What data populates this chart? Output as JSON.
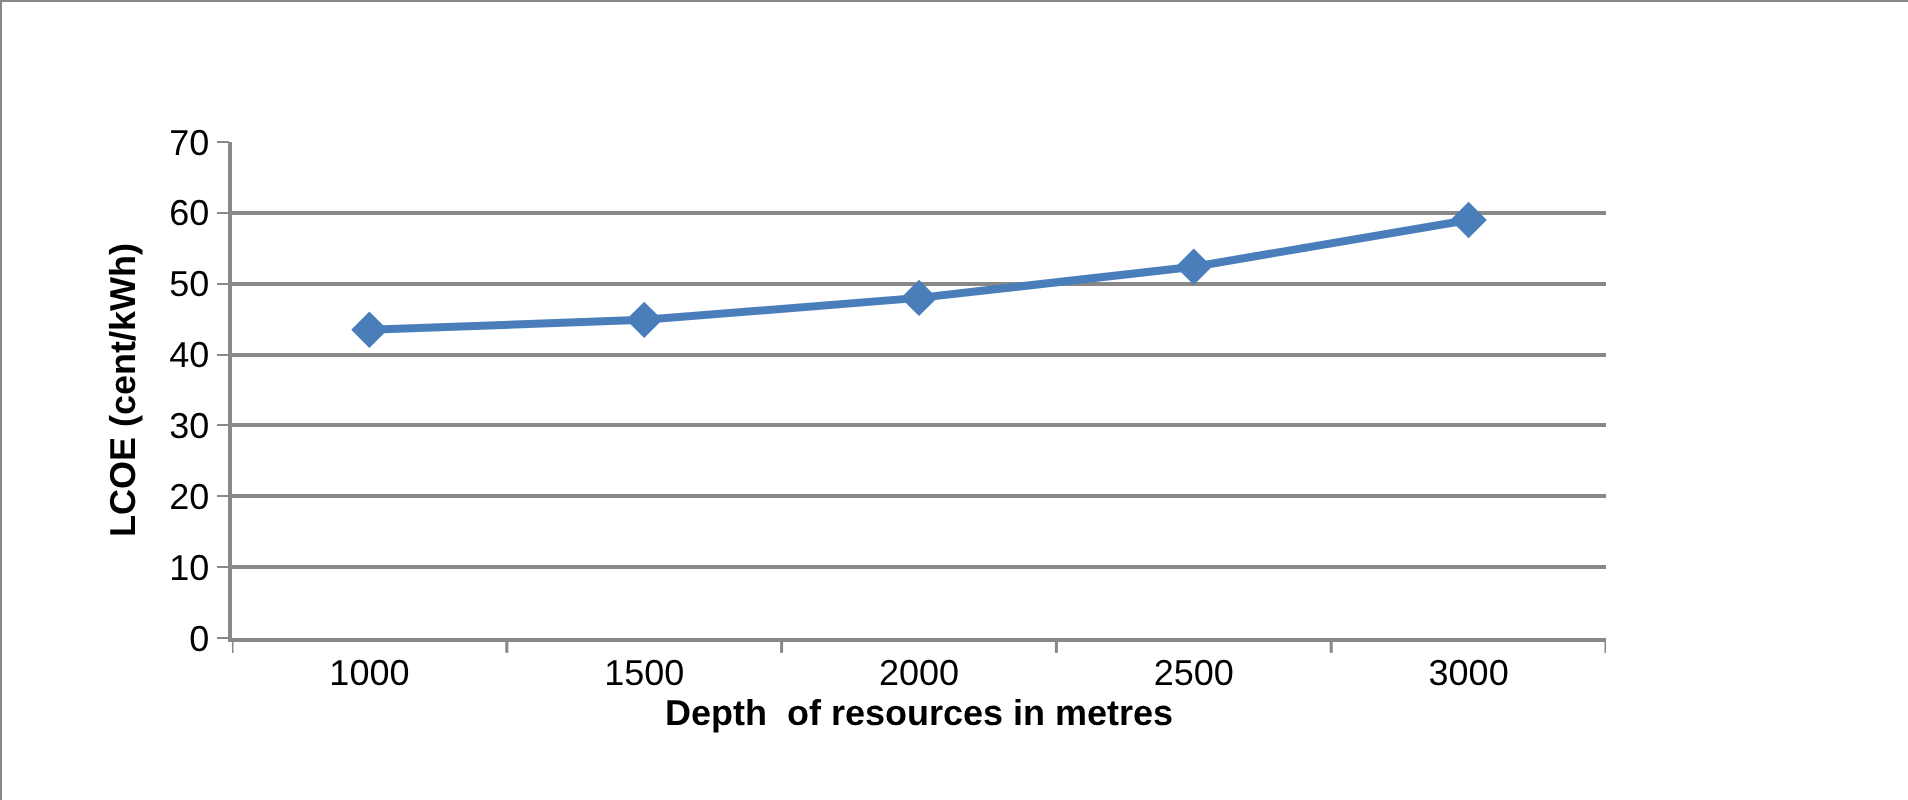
{
  "chart_data": {
    "type": "line",
    "xlabel": "Depth  of resources in metres",
    "ylabel": "LCOE (cent/kWh)",
    "categories": [
      "1000",
      "1500",
      "2000",
      "2500",
      "3000"
    ],
    "series": [
      {
        "color": "#4a7ebb",
        "values": [
          43.5,
          44.9,
          48.0,
          52.4,
          59.0
        ]
      }
    ],
    "ylim": [
      0,
      70
    ],
    "yticks": [
      0,
      10,
      20,
      30,
      40,
      50,
      60,
      70
    ],
    "grid": "y",
    "legend": false,
    "marker": "diamond",
    "line_style": "solid"
  }
}
